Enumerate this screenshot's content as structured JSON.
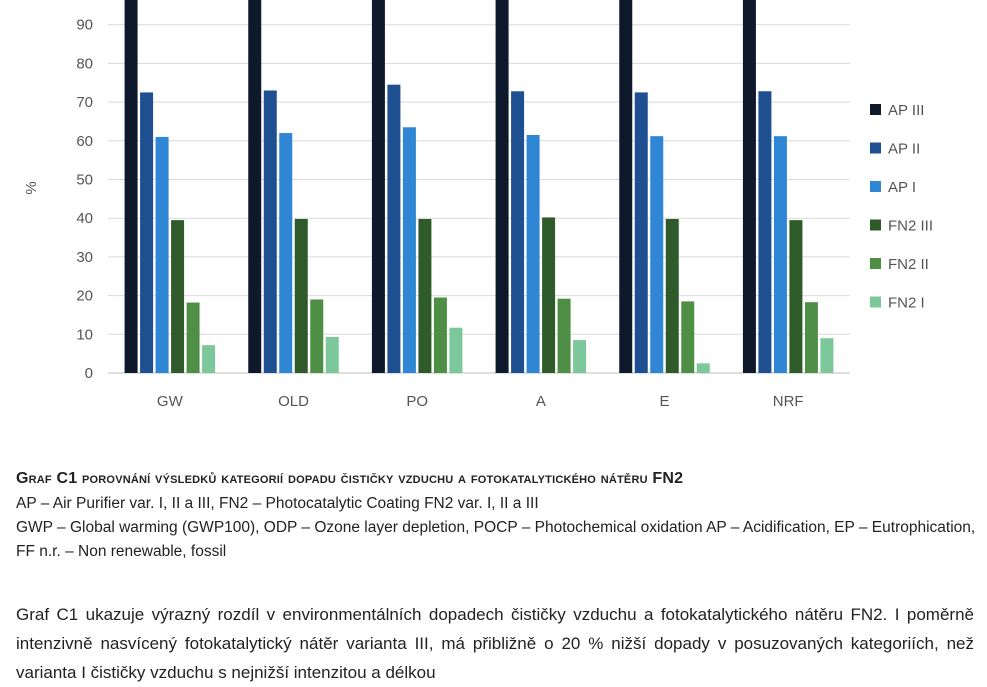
{
  "chart_data": {
    "type": "bar",
    "ylabel": "%",
    "ylim": [
      0,
      100
    ],
    "yticks": [
      0,
      10,
      20,
      30,
      40,
      50,
      60,
      70,
      80,
      90
    ],
    "categories": [
      "GW",
      "OLD",
      "PO",
      "A",
      "E",
      "NRF"
    ],
    "series": [
      {
        "name": "AP III",
        "color": "#0e1a2b",
        "values": [
          100,
          100,
          100,
          100,
          100,
          100
        ]
      },
      {
        "name": "AP II",
        "color": "#1d4f91",
        "values": [
          72.5,
          73,
          74.5,
          72.8,
          72.5,
          72.8
        ]
      },
      {
        "name": "AP I",
        "color": "#2f86d4",
        "values": [
          61,
          62,
          63.5,
          61.5,
          61.2,
          61.2
        ]
      },
      {
        "name": "FN2 III",
        "color": "#2f5a2a",
        "values": [
          39.5,
          39.8,
          39.8,
          40.2,
          39.8,
          39.5
        ]
      },
      {
        "name": "FN2 II",
        "color": "#4e8f45",
        "values": [
          18.2,
          19,
          19.5,
          19.2,
          18.5,
          18.3
        ]
      },
      {
        "name": "FN2 I",
        "color": "#7cc89a",
        "values": [
          7.2,
          9.3,
          11.7,
          8.5,
          2.5,
          9
        ]
      }
    ],
    "legend": "right",
    "grid": true
  },
  "caption": {
    "title": "Graf C1 porovnání výsledků kategorií dopadu čističky vzduchu a fotokatalytického nátěru FN2",
    "line1": "AP – Air Purifier var. I, II a III, FN2 – Photocatalytic Coating FN2 var. I, II a III",
    "line2": "GWP – Global warming (GWP100), ODP – Ozone layer depletion, POCP – Photochemical oxidation  AP – Acidification, EP – Eutrophication, FF n.r. – Non renewable, fossil"
  },
  "body": "Graf C1 ukazuje výrazný rozdíl v environmentálních dopadech čističky vzduchu a fotokatalytického nátěru FN2. I poměrně intenzivně nasvícený fotokatalytický nátěr varianta III, má přibližně o 20 % nižší dopady v posuzovaných kategoriích, než varianta I čističky vzduchu s nejnižší intenzitou a délkou"
}
